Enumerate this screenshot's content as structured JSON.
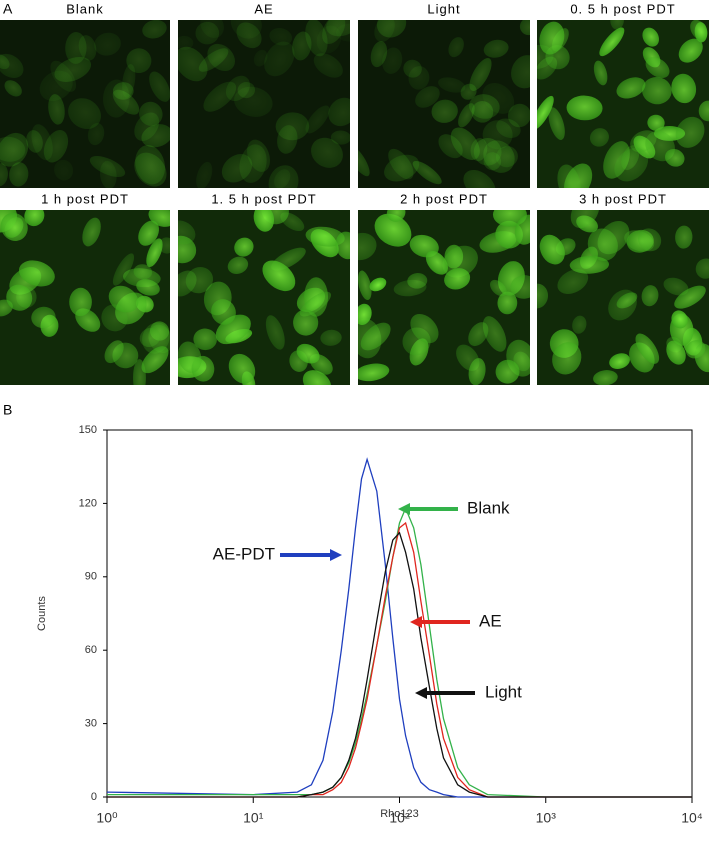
{
  "panel_a": {
    "label": "A",
    "images": [
      {
        "caption": "Blank"
      },
      {
        "caption": "AE"
      },
      {
        "caption": "Light"
      },
      {
        "caption": "0. 5 h post PDT"
      },
      {
        "caption": "1 h post PDT"
      },
      {
        "caption": "1. 5 h post PDT"
      },
      {
        "caption": "2 h post PDT"
      },
      {
        "caption": "3 h post PDT"
      }
    ]
  },
  "panel_b": {
    "label": "B"
  },
  "chart_data": {
    "type": "line",
    "xlabel": "Rho123",
    "ylabel": "Counts",
    "xscale": "log",
    "xlim": [
      1,
      10000
    ],
    "ylim": [
      0,
      150
    ],
    "xticks": [
      {
        "value": 1,
        "label": "10⁰"
      },
      {
        "value": 10,
        "label": "10¹"
      },
      {
        "value": 100,
        "label": "10²"
      },
      {
        "value": 1000,
        "label": "10³"
      },
      {
        "value": 10000,
        "label": "10⁴"
      }
    ],
    "yticks": [
      0,
      30,
      60,
      90,
      120,
      150
    ],
    "x": [
      1,
      10,
      20,
      25,
      30,
      35,
      40,
      45,
      50,
      55,
      60,
      70,
      80,
      90,
      100,
      110,
      125,
      140,
      160,
      180,
      200,
      250,
      300,
      400,
      1000,
      10000
    ],
    "series": [
      {
        "name": "AE-PDT",
        "color": "#1f3fbf",
        "values": [
          2,
          1,
          2,
          5,
          15,
          35,
          60,
          85,
          110,
          130,
          138,
          125,
          95,
          65,
          40,
          25,
          12,
          6,
          3,
          2,
          1,
          0,
          0,
          0,
          0,
          0
        ]
      },
      {
        "name": "Blank",
        "color": "#33b24a",
        "values": [
          1,
          1,
          1,
          1,
          2,
          4,
          8,
          14,
          22,
          32,
          42,
          62,
          80,
          98,
          112,
          118,
          110,
          95,
          70,
          48,
          32,
          12,
          5,
          1,
          0,
          0
        ]
      },
      {
        "name": "AE",
        "color": "#e0261f",
        "values": [
          0,
          0,
          0,
          1,
          1,
          3,
          6,
          12,
          20,
          30,
          40,
          62,
          82,
          98,
          110,
          112,
          100,
          80,
          58,
          38,
          24,
          8,
          3,
          0,
          0,
          0
        ]
      },
      {
        "name": "Light",
        "color": "#111111",
        "values": [
          0,
          0,
          0,
          1,
          2,
          4,
          8,
          15,
          24,
          35,
          48,
          72,
          92,
          105,
          108,
          100,
          85,
          65,
          45,
          28,
          16,
          5,
          2,
          0,
          0,
          0
        ]
      }
    ]
  }
}
